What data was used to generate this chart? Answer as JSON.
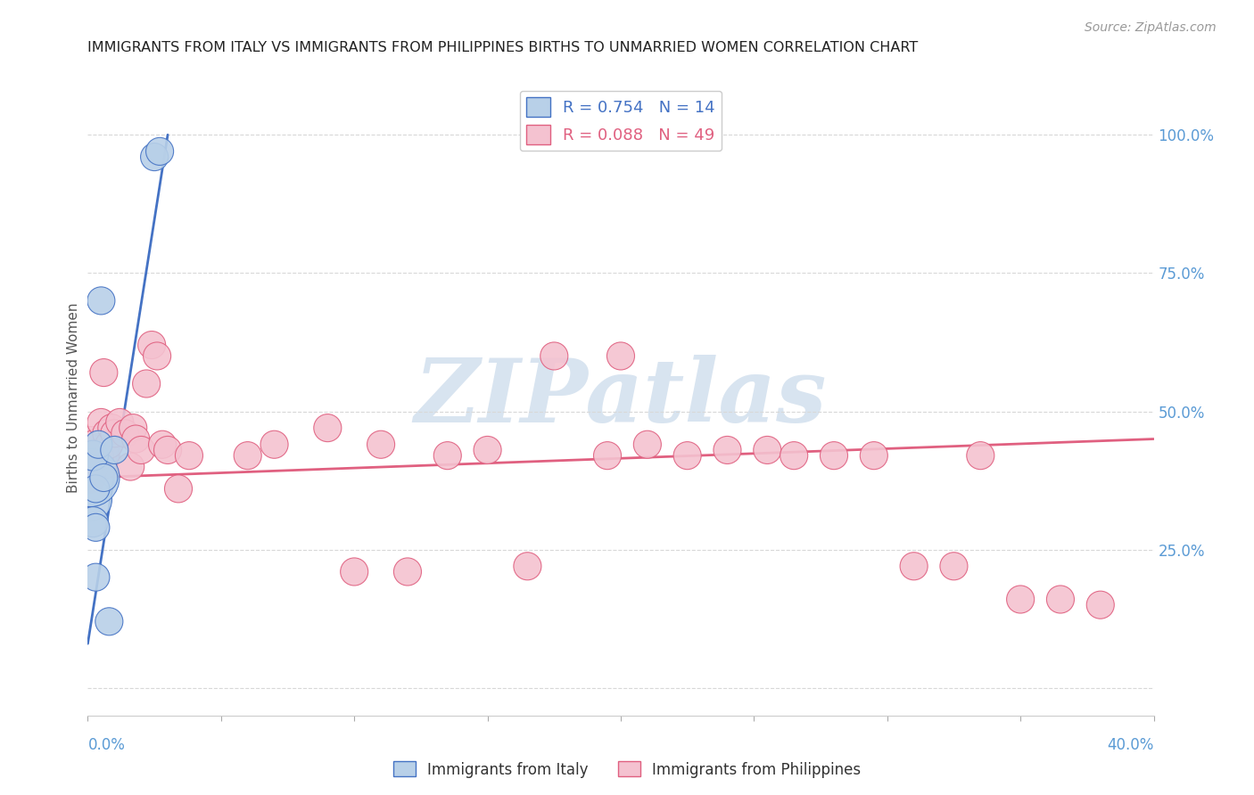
{
  "title": "IMMIGRANTS FROM ITALY VS IMMIGRANTS FROM PHILIPPINES BIRTHS TO UNMARRIED WOMEN CORRELATION CHART",
  "source": "Source: ZipAtlas.com",
  "ylabel": "Births to Unmarried Women",
  "legend_italy_r": "R = 0.754",
  "legend_italy_n": "N = 14",
  "legend_phil_r": "R = 0.088",
  "legend_phil_n": "N = 49",
  "italy_color": "#b8d0e8",
  "italy_color_dark": "#4472c4",
  "phil_color": "#f4c2d0",
  "phil_color_dark": "#e06080",
  "watermark_text": "ZIPatlas",
  "watermark_color": "#d8e4f0",
  "italy_x": [
    0.001,
    0.001,
    0.002,
    0.002,
    0.003,
    0.003,
    0.003,
    0.004,
    0.005,
    0.006,
    0.008,
    0.01,
    0.025,
    0.027
  ],
  "italy_y": [
    0.34,
    0.38,
    0.42,
    0.3,
    0.29,
    0.36,
    0.2,
    0.44,
    0.7,
    0.38,
    0.12,
    0.43,
    0.96,
    0.97
  ],
  "italy_size": [
    1200,
    2200,
    600,
    600,
    500,
    500,
    500,
    500,
    500,
    500,
    500,
    500,
    500,
    500
  ],
  "phil_x": [
    0.001,
    0.001,
    0.002,
    0.003,
    0.004,
    0.005,
    0.006,
    0.007,
    0.008,
    0.009,
    0.01,
    0.012,
    0.014,
    0.016,
    0.017,
    0.018,
    0.02,
    0.022,
    0.024,
    0.026,
    0.028,
    0.03,
    0.034,
    0.038,
    0.06,
    0.07,
    0.09,
    0.1,
    0.11,
    0.12,
    0.135,
    0.15,
    0.165,
    0.175,
    0.195,
    0.2,
    0.21,
    0.225,
    0.24,
    0.255,
    0.265,
    0.28,
    0.295,
    0.31,
    0.325,
    0.335,
    0.35,
    0.365,
    0.38
  ],
  "phil_y": [
    0.42,
    0.38,
    0.4,
    0.44,
    0.42,
    0.48,
    0.57,
    0.46,
    0.44,
    0.47,
    0.46,
    0.48,
    0.46,
    0.4,
    0.47,
    0.45,
    0.43,
    0.55,
    0.62,
    0.6,
    0.44,
    0.43,
    0.36,
    0.42,
    0.42,
    0.44,
    0.47,
    0.21,
    0.44,
    0.21,
    0.42,
    0.43,
    0.22,
    0.6,
    0.42,
    0.6,
    0.44,
    0.42,
    0.43,
    0.43,
    0.42,
    0.42,
    0.42,
    0.22,
    0.22,
    0.42,
    0.16,
    0.16,
    0.15
  ],
  "phil_size": [
    2200,
    600,
    600,
    600,
    600,
    500,
    500,
    500,
    500,
    500,
    500,
    500,
    500,
    500,
    500,
    500,
    500,
    500,
    500,
    500,
    500,
    500,
    500,
    500,
    500,
    500,
    500,
    500,
    500,
    500,
    500,
    500,
    500,
    500,
    500,
    500,
    500,
    500,
    500,
    500,
    500,
    500,
    500,
    500,
    500,
    500,
    500,
    500,
    500
  ],
  "xlim": [
    0.0,
    0.4
  ],
  "ylim": [
    -0.05,
    1.1
  ],
  "italy_line_x": [
    0.0,
    0.03
  ],
  "italy_line_y": [
    0.08,
    1.0
  ],
  "phil_line_x": [
    0.0,
    0.4
  ],
  "phil_line_y": [
    0.38,
    0.45
  ],
  "grid_yticks": [
    0.0,
    0.25,
    0.5,
    0.75,
    1.0
  ],
  "grid_yticklabels": [
    "",
    "25.0%",
    "50.0%",
    "75.0%",
    "100.0%"
  ],
  "grid_color": "#d8d8d8",
  "axis_color": "#5b9bd5",
  "title_color": "#222222",
  "source_color": "#999999"
}
